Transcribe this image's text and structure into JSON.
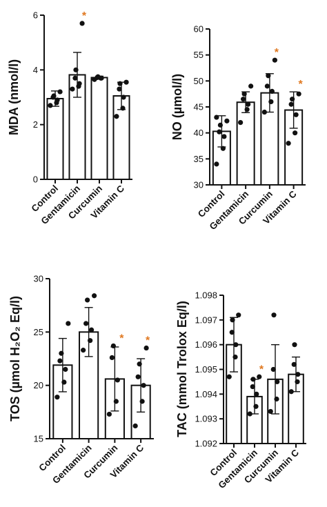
{
  "star_color": "#e07820",
  "bar_color": "#ffffff",
  "line_color": "#111111",
  "chart_data": [
    {
      "type": "bar",
      "ylabel": "MDA (nmol/l)",
      "categories": [
        "Control",
        "Gentamicin",
        "Curcumin",
        "Vitamin C"
      ],
      "ylim": [
        0,
        6
      ],
      "yticks": [
        "0",
        "2",
        "4",
        "6"
      ],
      "values": [
        2.95,
        3.82,
        3.72,
        3.05
      ],
      "sd": [
        0.28,
        0.82,
        0.05,
        0.5
      ],
      "points": [
        [
          2.7,
          2.8,
          2.9,
          3.0,
          3.05,
          3.2
        ],
        [
          3.3,
          3.4,
          3.5,
          3.7,
          4.0,
          5.7
        ],
        [
          3.65,
          3.7,
          3.7,
          3.72,
          3.75
        ],
        [
          2.3,
          2.6,
          3.0,
          3.3,
          3.5,
          3.55
        ]
      ],
      "significance": [
        "",
        "*",
        "",
        ""
      ]
    },
    {
      "type": "bar",
      "ylabel": "NO (µmol/l)",
      "categories": [
        "Control",
        "Gentamicin",
        "Curcumin",
        "Vitamin C"
      ],
      "ylim": [
        30,
        60
      ],
      "yticks": [
        "30",
        "35",
        "40",
        "45",
        "50",
        "55",
        "60"
      ],
      "values": [
        40.3,
        45.9,
        47.7,
        44.4
      ],
      "sd": [
        3.0,
        2.0,
        3.7,
        3.5
      ],
      "points": [
        [
          34,
          37,
          39.3,
          40.2,
          41.5,
          42.3,
          43
        ],
        [
          42,
          44.5,
          45.5,
          46.5,
          47.5,
          49
        ],
        [
          44,
          46,
          48,
          49,
          51,
          54
        ],
        [
          38,
          40,
          43.5,
          45.5,
          46.5,
          47.5
        ]
      ],
      "significance": [
        "",
        "",
        "*",
        "*"
      ]
    },
    {
      "type": "bar",
      "ylabel": "TOS (µmol H₂O₂ Eq/l)",
      "categories": [
        "Control",
        "Gentamicin",
        "Curcumin",
        "Vitamin C"
      ],
      "ylim": [
        15,
        30
      ],
      "yticks": [
        "15",
        "20",
        "25",
        "30"
      ],
      "values": [
        21.9,
        25.0,
        20.6,
        20.0
      ],
      "sd": [
        2.5,
        2.3,
        3.0,
        2.5
      ],
      "points": [
        [
          18.9,
          20.3,
          21.5,
          22.3,
          23.0,
          25.8
        ],
        [
          23.3,
          24.2,
          25.2,
          25.8,
          28.0,
          28.4
        ],
        [
          17.3,
          18.5,
          20.5,
          22.6,
          23.7
        ],
        [
          16.2,
          18.5,
          20.0,
          20.8,
          22.0,
          23.5
        ]
      ],
      "significance": [
        "",
        "",
        "*",
        "*"
      ]
    },
    {
      "type": "bar",
      "ylabel": "TAC (mmol Trolox Eq/l)",
      "categories": [
        "Control",
        "Gentamicin",
        "Curcumin",
        "Vitamin C"
      ],
      "ylim": [
        1.092,
        1.098
      ],
      "yticks": [
        "1.092",
        "1.093",
        "1.094",
        "1.095",
        "1.096",
        "1.097",
        "1.098"
      ],
      "values": [
        1.096,
        1.0939,
        1.0946,
        1.0948
      ],
      "sd": [
        0.0011,
        0.0007,
        0.0014,
        0.0007
      ],
      "points": [
        [
          1.0947,
          1.0955,
          1.096,
          1.0965,
          1.097,
          1.0972
        ],
        [
          1.0932,
          1.0935,
          1.094,
          1.0943,
          1.0946,
          1.0947
        ],
        [
          1.0933,
          1.0938,
          1.0945,
          1.095,
          1.0972
        ],
        [
          1.0941,
          1.0945,
          1.0948,
          1.0952,
          1.096
        ]
      ],
      "significance": [
        "",
        "*",
        "",
        ""
      ]
    }
  ]
}
